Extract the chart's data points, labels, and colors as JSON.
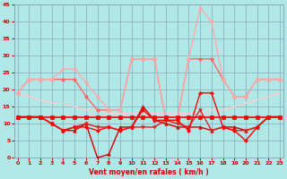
{
  "x": [
    0,
    1,
    2,
    3,
    4,
    5,
    6,
    7,
    8,
    9,
    10,
    11,
    12,
    13,
    14,
    15,
    16,
    17,
    18,
    19,
    20,
    21,
    22,
    23
  ],
  "series": [
    {
      "color": "#ff0000",
      "values": [
        12,
        12,
        12,
        12,
        12,
        12,
        12,
        12,
        12,
        12,
        12,
        12,
        12,
        12,
        12,
        12,
        12,
        12,
        12,
        12,
        12,
        12,
        12,
        12
      ],
      "marker": "s",
      "linewidth": 1.2,
      "markersize": 2.5,
      "zorder": 5
    },
    {
      "color": "#cc0000",
      "values": [
        12,
        12,
        12,
        10,
        8,
        8,
        10,
        0,
        1,
        9,
        9,
        15,
        11,
        10,
        9,
        9,
        9,
        8,
        9,
        9,
        8,
        9,
        12,
        12
      ],
      "marker": "^",
      "linewidth": 1.0,
      "markersize": 2.5,
      "zorder": 4
    },
    {
      "color": "#dd2222",
      "values": [
        12,
        12,
        12,
        10,
        8,
        9,
        10,
        9,
        9,
        8,
        9,
        9,
        9,
        11,
        10,
        9,
        14,
        8,
        9,
        8,
        8,
        9,
        12,
        12
      ],
      "marker": "v",
      "linewidth": 1.0,
      "markersize": 2.5,
      "zorder": 4
    },
    {
      "color": "#ff0000",
      "values": [
        12,
        12,
        12,
        10,
        8,
        9,
        9,
        8,
        9,
        8,
        9,
        14,
        11,
        11,
        11,
        8,
        19,
        19,
        9,
        8,
        5,
        9,
        12,
        12
      ],
      "marker": "D",
      "linewidth": 1.0,
      "markersize": 2.0,
      "zorder": 4
    },
    {
      "color": "#ff6666",
      "values": [
        19,
        23,
        23,
        23,
        23,
        23,
        18,
        14,
        14,
        14,
        29,
        29,
        29,
        11,
        11,
        29,
        29,
        29,
        23,
        18,
        18,
        23,
        23,
        23
      ],
      "marker": "o",
      "linewidth": 1.0,
      "markersize": 2.5,
      "zorder": 3
    },
    {
      "color": "#ffaaaa",
      "values": [
        19,
        23,
        23,
        23,
        26,
        26,
        22,
        18,
        14,
        14,
        29,
        29,
        29,
        11,
        11,
        29,
        44,
        40,
        23,
        18,
        18,
        23,
        23,
        23
      ],
      "marker": "o",
      "linewidth": 1.0,
      "markersize": 2.5,
      "zorder": 3
    },
    {
      "color": "#ffcccc",
      "values": [
        19,
        18,
        17,
        16,
        16,
        15,
        14,
        14,
        13,
        13,
        13,
        13,
        13,
        13,
        13,
        13,
        13,
        14,
        14,
        15,
        16,
        17,
        18,
        19
      ],
      "marker": null,
      "linewidth": 1.0,
      "markersize": 0,
      "zorder": 2
    }
  ],
  "xlim": [
    -0.3,
    23.3
  ],
  "ylim": [
    0,
    45
  ],
  "yticks": [
    0,
    5,
    10,
    15,
    20,
    25,
    30,
    35,
    40,
    45
  ],
  "xticks": [
    0,
    1,
    2,
    3,
    4,
    5,
    6,
    7,
    8,
    9,
    10,
    11,
    12,
    13,
    14,
    15,
    16,
    17,
    18,
    19,
    20,
    21,
    22,
    23
  ],
  "xlabel": "Vent moyen/en rafales ( km/h )",
  "background_color": "#b0e8e8",
  "grid_color": "#88aabb",
  "label_color": "#cc0000",
  "tick_color": "#cc0000"
}
